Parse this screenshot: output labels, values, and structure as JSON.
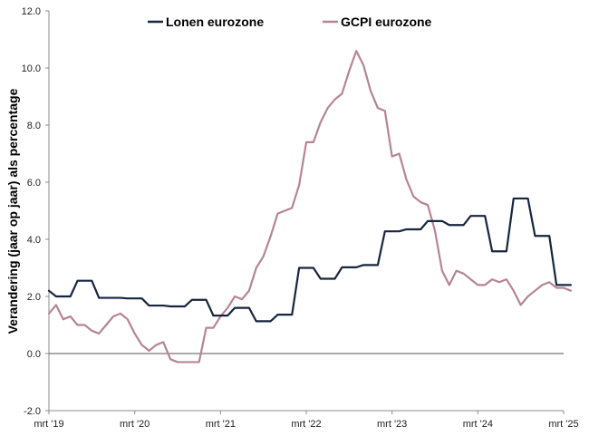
{
  "chart_data": {
    "type": "line",
    "title": "",
    "xlabel": "",
    "ylabel": "Verandering (jaar op jaar) als percentage",
    "ylim": [
      -2.0,
      12.0
    ],
    "yticks": [
      "-2.0",
      "0.0",
      "2.0",
      "4.0",
      "6.0",
      "8.0",
      "10.0",
      "12.0"
    ],
    "xticks": [
      "mrt '19",
      "mrt '20",
      "mrt '21",
      "mrt '22",
      "mrt '23",
      "mrt '24",
      "mrt '25"
    ],
    "x_start": "2019-03",
    "x_end": "2025-03",
    "grid": false,
    "legend_position": "top",
    "zero_line": true,
    "series": [
      {
        "name": "Lonen eurozone",
        "color": "#17263f",
        "values": [
          2.2,
          2.0,
          2.0,
          2.0,
          2.55,
          2.55,
          2.55,
          1.95,
          1.95,
          1.95,
          1.95,
          1.93,
          1.93,
          1.93,
          1.68,
          1.68,
          1.68,
          1.65,
          1.65,
          1.65,
          1.88,
          1.88,
          1.88,
          1.33,
          1.33,
          1.33,
          1.6,
          1.6,
          1.6,
          1.13,
          1.13,
          1.13,
          1.36,
          1.36,
          1.36,
          3.0,
          3.0,
          3.0,
          2.62,
          2.62,
          2.62,
          3.02,
          3.02,
          3.02,
          3.1,
          3.1,
          3.1,
          4.28,
          4.28,
          4.28,
          4.35,
          4.35,
          4.35,
          4.64,
          4.64,
          4.64,
          4.5,
          4.5,
          4.5,
          4.82,
          4.82,
          4.82,
          3.58,
          3.58,
          3.58,
          5.43,
          5.43,
          5.43,
          4.12,
          4.12,
          4.12,
          2.4,
          2.4,
          2.4
        ]
      },
      {
        "name": "GCPI eurozone",
        "color": "#b58593",
        "values": [
          1.4,
          1.7,
          1.2,
          1.3,
          1.0,
          1.0,
          0.8,
          0.7,
          1.0,
          1.3,
          1.4,
          1.2,
          0.7,
          0.3,
          0.1,
          0.3,
          0.4,
          -0.2,
          -0.3,
          -0.3,
          -0.3,
          -0.3,
          0.9,
          0.9,
          1.3,
          1.6,
          2.0,
          1.9,
          2.2,
          3.0,
          3.4,
          4.1,
          4.9,
          5.0,
          5.1,
          5.9,
          7.4,
          7.4,
          8.1,
          8.6,
          8.9,
          9.1,
          9.9,
          10.6,
          10.1,
          9.2,
          8.6,
          8.5,
          6.9,
          7.0,
          6.1,
          5.5,
          5.3,
          5.2,
          4.3,
          2.9,
          2.4,
          2.9,
          2.8,
          2.6,
          2.4,
          2.4,
          2.6,
          2.5,
          2.6,
          2.2,
          1.7,
          2.0,
          2.2,
          2.4,
          2.5,
          2.3,
          2.3,
          2.2
        ]
      }
    ]
  }
}
